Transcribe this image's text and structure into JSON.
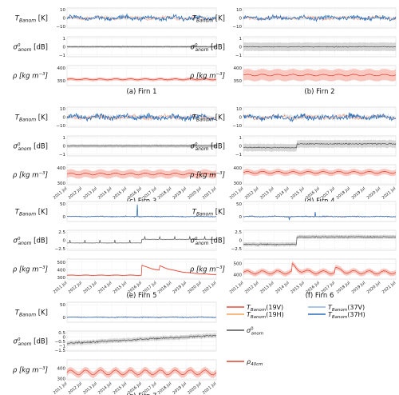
{
  "figure": {
    "date_labels": [
      "2011 Jul",
      "2012 Jul",
      "2013 Jul",
      "2014 Jul",
      "2015 Jul",
      "2016 Jul",
      "2017 Jul",
      "2018 Jul",
      "2019 Jul",
      "2020 Jul",
      "2021 Jul"
    ],
    "ylabels": {
      "tb": "T_Banom [K]",
      "sigma": "σ⁰_anom [dB]",
      "rho": "ρ [kg m⁻³]"
    },
    "colors": {
      "t19v": "#e8483c",
      "t19h": "#f2a45a",
      "t37v": "#8fb6e0",
      "t37h": "#2a6db5",
      "sigma": "#555555",
      "sigma_band": "#bdbdbd",
      "rho": "#e0402f",
      "rho_band": "#f6b0a6"
    },
    "legend": {
      "t19v": "T_Banom(19V)",
      "t19h": "T_Banom(19H)",
      "t37v": "T_Banom(37V)",
      "t37h": "T_Banom(37H)",
      "sigma": "σ⁰_anom",
      "rho": "ρ_40cm"
    }
  },
  "chart_data": [
    {
      "type": "line",
      "panel": "(a) Firn 1",
      "caption": "(a) Firn 1",
      "tb": {
        "yticks": [
          -10,
          0,
          10
        ],
        "ylim": [
          -12,
          12
        ]
      },
      "sigma": {
        "yticks": [
          -1,
          0,
          1
        ],
        "ylim": [
          -1.2,
          1.2
        ],
        "trend": "flat near 0"
      },
      "rho": {
        "yticks": [
          350,
          400
        ],
        "ylim": [
          330,
          410
        ],
        "baseline": 355
      }
    },
    {
      "type": "line",
      "panel": "(b) Firn 2",
      "caption": "(b) Firn 2",
      "tb": {
        "yticks": [
          -10,
          0,
          10
        ],
        "ylim": [
          -12,
          12
        ]
      },
      "sigma": {
        "yticks": [
          -1,
          0,
          1
        ],
        "ylim": [
          -1.2,
          1.2
        ],
        "trend": "flat near 0"
      },
      "rho": {
        "yticks": [
          350,
          400
        ],
        "ylim": [
          330,
          410
        ],
        "baseline": 372
      }
    },
    {
      "type": "line",
      "panel": "(c) Firn 3",
      "caption": "(c) Firn 3",
      "tb": {
        "yticks": [
          -10,
          0,
          10
        ],
        "ylim": [
          -12,
          12
        ]
      },
      "sigma": {
        "yticks": [
          -1,
          0,
          1
        ],
        "ylim": [
          -1.2,
          1.2
        ],
        "trend": "flat near 0"
      },
      "rho": {
        "yticks": [
          300,
          400
        ],
        "ylim": [
          290,
          420
        ],
        "baseline": 360
      }
    },
    {
      "type": "line",
      "panel": "(d) Firn 4",
      "caption": "(d) Firn 4",
      "tb": {
        "yticks": [
          -10,
          0,
          10
        ],
        "ylim": [
          -12,
          12
        ]
      },
      "sigma": {
        "yticks": [
          -1,
          0,
          1
        ],
        "ylim": [
          -1.2,
          1.2
        ],
        "trend": "step up after 2014"
      },
      "rho": {
        "yticks": [
          300,
          400
        ],
        "ylim": [
          290,
          420
        ],
        "baseline": 370
      }
    },
    {
      "type": "line",
      "panel": "(e) Firn 5",
      "caption": "(e) Firn 5",
      "tb": {
        "yticks": [
          0,
          50
        ],
        "ylim": [
          -20,
          60
        ]
      },
      "sigma": {
        "yticks": [
          -2.5,
          0.0,
          2.5
        ],
        "ylim": [
          -3,
          3
        ],
        "trend": "step up in 2016"
      },
      "rho": {
        "yticks": [
          300,
          400,
          500
        ],
        "ylim": [
          280,
          540
        ],
        "baseline": 330
      }
    },
    {
      "type": "line",
      "panel": "(f) Firn 6",
      "caption": "(f) Firn 6",
      "tb": {
        "yticks": [
          0,
          50
        ],
        "ylim": [
          -20,
          60
        ]
      },
      "sigma": {
        "yticks": [
          -2.5,
          0.0,
          2.5
        ],
        "ylim": [
          -3,
          3
        ],
        "trend": "step up in 2014"
      },
      "rho": {
        "yticks": [
          400,
          500
        ],
        "ylim": [
          360,
          540
        ],
        "baseline": 420
      }
    },
    {
      "type": "line",
      "panel": "(g) Firn 7",
      "caption": "(g) Firn 7",
      "tb": {
        "yticks": [
          0,
          50
        ],
        "ylim": [
          -20,
          60
        ]
      },
      "sigma": {
        "yticks": [
          -1.5,
          -1.0,
          -0.5,
          0.0,
          0.5
        ],
        "ylim": [
          -1.6,
          0.7
        ],
        "trend": "slight rise"
      },
      "rho": {
        "yticks": [
          300,
          400
        ],
        "ylim": [
          290,
          480
        ],
        "baseline": 360
      }
    }
  ]
}
